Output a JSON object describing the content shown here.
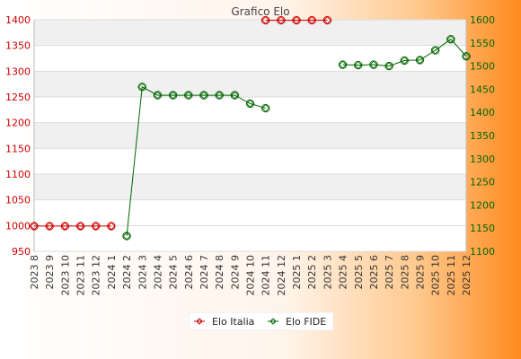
{
  "chart_data": {
    "type": "line",
    "title": "Grafico Elo",
    "categories": [
      "2023 8",
      "2023 9",
      "2023 10",
      "2023 11",
      "2023 12",
      "2024 1",
      "2024 2",
      "2024 3",
      "2024 4",
      "2024 5",
      "2024 6",
      "2024 7",
      "2024 8",
      "2024 9",
      "2024 10",
      "2024 11",
      "2024 12",
      "2025 1",
      "2025 2",
      "2025 3",
      "2025 4",
      "2025 5",
      "2025 6",
      "2025 7",
      "2025 8",
      "2025 9",
      "2025 10",
      "2025 11",
      "2025 12"
    ],
    "y_left": {
      "min": 950,
      "max": 1400,
      "ticks": [
        950,
        1000,
        1050,
        1100,
        1150,
        1200,
        1250,
        1300,
        1350,
        1400
      ]
    },
    "y_right": {
      "min": 1100,
      "max": 1600,
      "ticks": [
        1100,
        1150,
        1200,
        1250,
        1300,
        1350,
        1400,
        1450,
        1500,
        1550,
        1600
      ]
    },
    "grid": true,
    "legend_position": "bottom",
    "series": [
      {
        "name": "Elo Italia",
        "axis": "left",
        "color": "#cc0000",
        "values": [
          999,
          999,
          999,
          999,
          999,
          999,
          null,
          null,
          null,
          null,
          null,
          null,
          null,
          null,
          null,
          1399,
          1399,
          1399,
          1399,
          1399,
          null,
          null,
          null,
          null,
          null,
          null,
          null,
          null,
          null
        ]
      },
      {
        "name": "Elo FIDE",
        "axis": "right",
        "color": "#006600",
        "values": [
          null,
          null,
          null,
          null,
          null,
          null,
          1133,
          1455,
          1437,
          1437,
          1437,
          1437,
          1437,
          1437,
          1419,
          1409,
          null,
          null,
          null,
          null,
          1503,
          1502,
          1503,
          1500,
          1512,
          1513,
          1534,
          1558,
          1521
        ]
      }
    ]
  }
}
